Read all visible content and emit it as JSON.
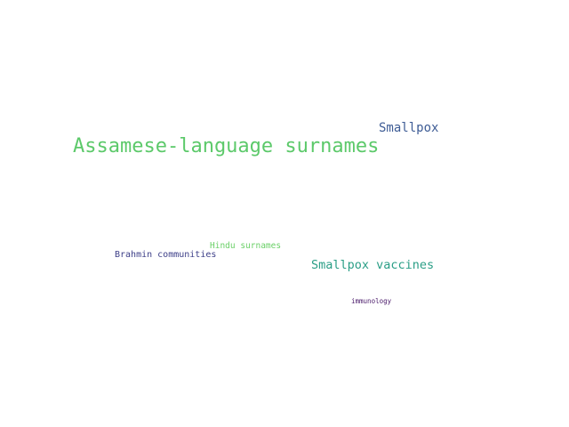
{
  "words": [
    {
      "text": "Assamese-language surnames",
      "color": "#5cc96a"
    },
    {
      "text": "Smallpox",
      "color": "#3e5c95"
    },
    {
      "text": "Smallpox vaccines",
      "color": "#2a9e86"
    },
    {
      "text": "Hindu surnames",
      "color": "#6bd068"
    },
    {
      "text": "Brahmin communities",
      "color": "#3d3f88"
    },
    {
      "text": "immunology",
      "color": "#4a1a6a"
    }
  ]
}
